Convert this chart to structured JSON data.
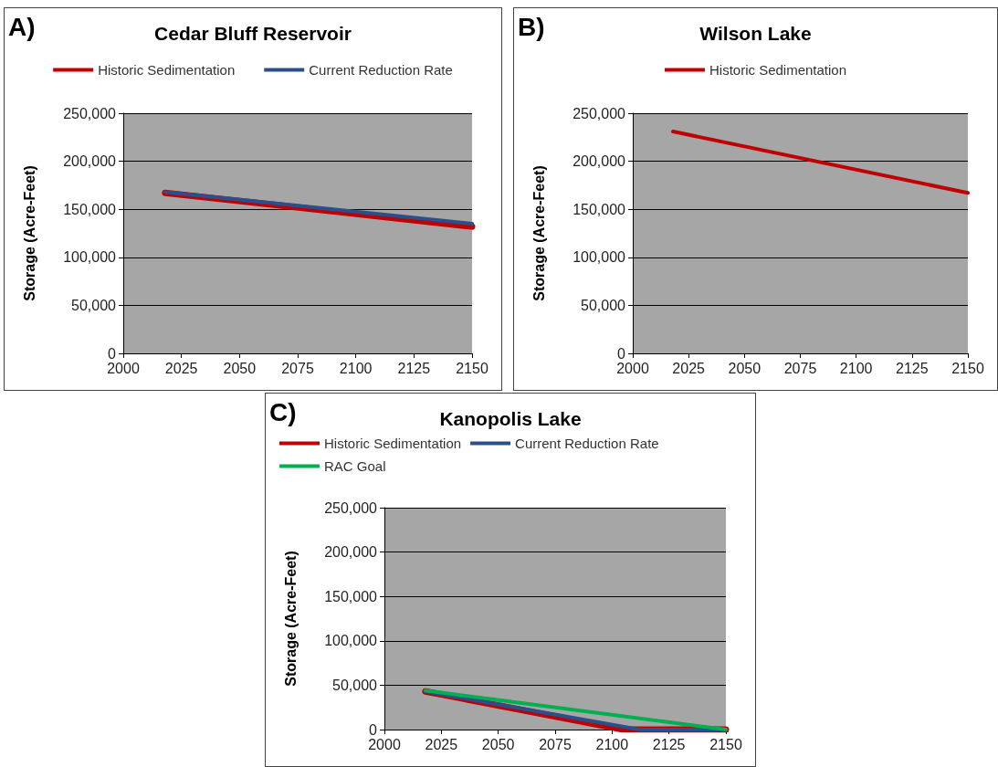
{
  "chart_data": [
    {
      "type": "line",
      "title": "Cedar Bluff Reservoir",
      "annotations": [
        "A)"
      ],
      "ylabel": "Storage (Acre-Feet)",
      "xlim": [
        2000,
        2150
      ],
      "xticks": [
        2000,
        2025,
        2050,
        2075,
        2100,
        2125,
        2150
      ],
      "ylim": [
        0,
        250000
      ],
      "yticks": [
        {
          "value": 0,
          "label": "0"
        },
        {
          "value": 50000,
          "label": "50,000"
        },
        {
          "value": 100000,
          "label": "100,000"
        },
        {
          "value": 150000,
          "label": "150,000"
        },
        {
          "value": 200000,
          "label": "200,000"
        },
        {
          "value": 250000,
          "label": "250,000"
        }
      ],
      "grid": "y",
      "legend": "top",
      "marker": "none",
      "line_style": "solid",
      "series": [
        {
          "name": "Historic Sedimentation",
          "color": "#c00000",
          "x": [
            2018,
            2150
          ],
          "values": [
            167000,
            132000
          ]
        },
        {
          "name": "Current Reduction Rate",
          "color": "#2a4f8a",
          "x": [
            2018,
            2150
          ],
          "values": [
            168000,
            135000
          ]
        }
      ]
    },
    {
      "type": "line",
      "title": "Wilson Lake",
      "annotations": [
        "B)"
      ],
      "ylabel": "Storage (Acre-Feet)",
      "xlim": [
        2000,
        2150
      ],
      "xticks": [
        2000,
        2025,
        2050,
        2075,
        2100,
        2125,
        2150
      ],
      "ylim": [
        0,
        250000
      ],
      "yticks": [
        {
          "value": 0,
          "label": "0"
        },
        {
          "value": 50000,
          "label": "50,000"
        },
        {
          "value": 100000,
          "label": "100,000"
        },
        {
          "value": 150000,
          "label": "150,000"
        },
        {
          "value": 200000,
          "label": "200,000"
        },
        {
          "value": 250000,
          "label": "250,000"
        }
      ],
      "grid": "y",
      "legend": "top",
      "marker": "none",
      "line_style": "solid",
      "series": [
        {
          "name": "Historic Sedimentation",
          "color": "#c00000",
          "x": [
            2018,
            2150
          ],
          "values": [
            231000,
            167000
          ]
        }
      ]
    },
    {
      "type": "line",
      "title": "Kanopolis Lake",
      "annotations": [
        "C)"
      ],
      "ylabel": "Storage (Acre-Feet)",
      "xlim": [
        2000,
        2150
      ],
      "xticks": [
        2000,
        2025,
        2050,
        2075,
        2100,
        2125,
        2150
      ],
      "ylim": [
        0,
        250000
      ],
      "yticks": [
        {
          "value": 0,
          "label": "0"
        },
        {
          "value": 50000,
          "label": "50,000"
        },
        {
          "value": 100000,
          "label": "100,000"
        },
        {
          "value": 150000,
          "label": "150,000"
        },
        {
          "value": 200000,
          "label": "200,000"
        },
        {
          "value": 250000,
          "label": "250,000"
        }
      ],
      "grid": "y",
      "legend": "top",
      "marker": "none",
      "line_style": "solid",
      "series": [
        {
          "name": "Historic Sedimentation",
          "color": "#c00000",
          "x": [
            2018,
            2105,
            2150
          ],
          "values": [
            43000,
            0,
            0
          ]
        },
        {
          "name": "Current Reduction Rate",
          "color": "#2a4f8a",
          "x": [
            2018,
            2112,
            2150
          ],
          "values": [
            43000,
            0,
            0
          ]
        },
        {
          "name": "RAC Goal",
          "color": "#00b050",
          "x": [
            2018,
            2150
          ],
          "values": [
            44000,
            0
          ]
        }
      ]
    }
  ]
}
